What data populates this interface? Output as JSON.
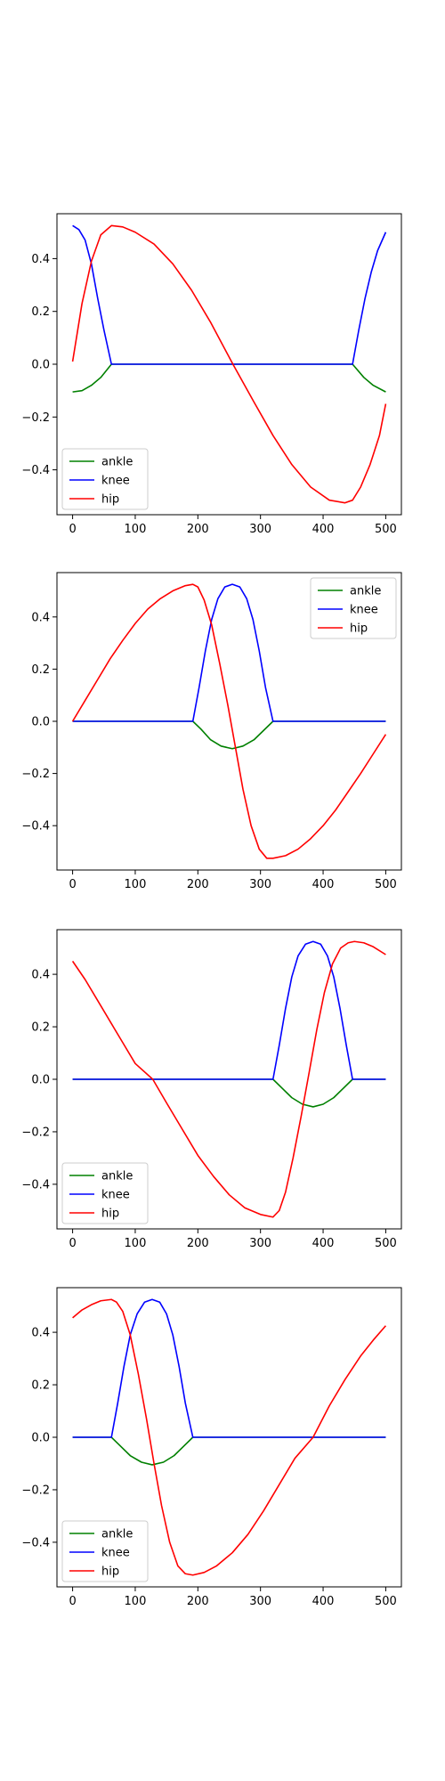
{
  "chart_data": [
    {
      "type": "line",
      "title": "",
      "xlabel": "",
      "ylabel": "",
      "xlim": [
        -25,
        525
      ],
      "ylim": [
        -0.57,
        0.57
      ],
      "xticks": [
        0,
        100,
        200,
        300,
        400,
        500
      ],
      "yticks": [
        -0.4,
        -0.2,
        0.0,
        0.2,
        0.4
      ],
      "grid": false,
      "legend_position": "lower-left",
      "series": [
        {
          "name": "ankle",
          "color": "#008000",
          "points": [
            [
              0,
              -0.105
            ],
            [
              15,
              -0.1
            ],
            [
              30,
              -0.08
            ],
            [
              45,
              -0.05
            ],
            [
              62,
              0
            ],
            [
              447,
              0
            ],
            [
              465,
              -0.05
            ],
            [
              480,
              -0.08
            ],
            [
              500,
              -0.105
            ]
          ]
        },
        {
          "name": "knee",
          "color": "#0000ff",
          "points": [
            [
              0,
              0.525
            ],
            [
              10,
              0.51
            ],
            [
              20,
              0.47
            ],
            [
              30,
              0.38
            ],
            [
              40,
              0.25
            ],
            [
              50,
              0.13
            ],
            [
              62,
              0
            ],
            [
              447,
              0
            ],
            [
              457,
              0.13
            ],
            [
              467,
              0.25
            ],
            [
              477,
              0.35
            ],
            [
              487,
              0.43
            ],
            [
              500,
              0.5
            ]
          ]
        },
        {
          "name": "hip",
          "color": "#ff0000",
          "points": [
            [
              0,
              0.01
            ],
            [
              15,
              0.23
            ],
            [
              30,
              0.39
            ],
            [
              45,
              0.49
            ],
            [
              62,
              0.525
            ],
            [
              80,
              0.52
            ],
            [
              100,
              0.5
            ],
            [
              130,
              0.455
            ],
            [
              160,
              0.38
            ],
            [
              190,
              0.28
            ],
            [
              220,
              0.16
            ],
            [
              256,
              0.0
            ],
            [
              290,
              -0.145
            ],
            [
              320,
              -0.27
            ],
            [
              350,
              -0.38
            ],
            [
              380,
              -0.465
            ],
            [
              410,
              -0.515
            ],
            [
              435,
              -0.525
            ],
            [
              447,
              -0.515
            ],
            [
              460,
              -0.465
            ],
            [
              475,
              -0.38
            ],
            [
              490,
              -0.27
            ],
            [
              500,
              -0.15
            ]
          ]
        }
      ]
    },
    {
      "type": "line",
      "title": "",
      "xlabel": "",
      "ylabel": "",
      "xlim": [
        -25,
        525
      ],
      "ylim": [
        -0.57,
        0.57
      ],
      "xticks": [
        0,
        100,
        200,
        300,
        400,
        500
      ],
      "yticks": [
        -0.4,
        -0.2,
        0.0,
        0.2,
        0.4
      ],
      "grid": false,
      "legend_position": "upper-right",
      "series": [
        {
          "name": "ankle",
          "color": "#008000",
          "points": [
            [
              0,
              0
            ],
            [
              192,
              0
            ],
            [
              205,
              -0.03
            ],
            [
              220,
              -0.07
            ],
            [
              237,
              -0.095
            ],
            [
              255,
              -0.105
            ],
            [
              272,
              -0.095
            ],
            [
              290,
              -0.07
            ],
            [
              305,
              -0.035
            ],
            [
              320,
              0
            ],
            [
              500,
              0
            ]
          ]
        },
        {
          "name": "knee",
          "color": "#0000ff",
          "points": [
            [
              0,
              0
            ],
            [
              192,
              0
            ],
            [
              202,
              0.13
            ],
            [
              212,
              0.27
            ],
            [
              222,
              0.39
            ],
            [
              232,
              0.47
            ],
            [
              243,
              0.515
            ],
            [
              255,
              0.525
            ],
            [
              267,
              0.515
            ],
            [
              278,
              0.47
            ],
            [
              288,
              0.39
            ],
            [
              298,
              0.27
            ],
            [
              308,
              0.13
            ],
            [
              320,
              0
            ],
            [
              500,
              0
            ]
          ]
        },
        {
          "name": "hip",
          "color": "#ff0000",
          "points": [
            [
              0,
              0.0
            ],
            [
              20,
              0.08
            ],
            [
              40,
              0.16
            ],
            [
              60,
              0.24
            ],
            [
              80,
              0.31
            ],
            [
              100,
              0.375
            ],
            [
              120,
              0.43
            ],
            [
              140,
              0.47
            ],
            [
              160,
              0.5
            ],
            [
              180,
              0.52
            ],
            [
              192,
              0.525
            ],
            [
              200,
              0.515
            ],
            [
              210,
              0.465
            ],
            [
              222,
              0.37
            ],
            [
              235,
              0.22
            ],
            [
              248,
              0.06
            ],
            [
              260,
              -0.1
            ],
            [
              272,
              -0.26
            ],
            [
              285,
              -0.4
            ],
            [
              298,
              -0.49
            ],
            [
              310,
              -0.525
            ],
            [
              320,
              -0.525
            ],
            [
              340,
              -0.515
            ],
            [
              360,
              -0.49
            ],
            [
              380,
              -0.45
            ],
            [
              400,
              -0.4
            ],
            [
              420,
              -0.34
            ],
            [
              440,
              -0.27
            ],
            [
              460,
              -0.2
            ],
            [
              480,
              -0.125
            ],
            [
              500,
              -0.05
            ]
          ]
        }
      ]
    },
    {
      "type": "line",
      "title": "",
      "xlabel": "",
      "ylabel": "",
      "xlim": [
        -25,
        525
      ],
      "ylim": [
        -0.57,
        0.57
      ],
      "xticks": [
        0,
        100,
        200,
        300,
        400,
        500
      ],
      "yticks": [
        -0.4,
        -0.2,
        0.0,
        0.2,
        0.4
      ],
      "grid": false,
      "legend_position": "lower-left",
      "series": [
        {
          "name": "ankle",
          "color": "#008000",
          "points": [
            [
              0,
              0
            ],
            [
              320,
              0
            ],
            [
              335,
              -0.035
            ],
            [
              350,
              -0.07
            ],
            [
              367,
              -0.095
            ],
            [
              384,
              -0.105
            ],
            [
              400,
              -0.095
            ],
            [
              417,
              -0.07
            ],
            [
              432,
              -0.035
            ],
            [
              447,
              0
            ],
            [
              500,
              0
            ]
          ]
        },
        {
          "name": "knee",
          "color": "#0000ff",
          "points": [
            [
              0,
              0
            ],
            [
              320,
              0
            ],
            [
              330,
              0.13
            ],
            [
              340,
              0.27
            ],
            [
              350,
              0.39
            ],
            [
              360,
              0.47
            ],
            [
              372,
              0.515
            ],
            [
              384,
              0.525
            ],
            [
              396,
              0.515
            ],
            [
              407,
              0.47
            ],
            [
              417,
              0.39
            ],
            [
              427,
              0.27
            ],
            [
              437,
              0.13
            ],
            [
              447,
              0
            ],
            [
              500,
              0
            ]
          ]
        },
        {
          "name": "hip",
          "color": "#ff0000",
          "points": [
            [
              0,
              0.45
            ],
            [
              20,
              0.38
            ],
            [
              40,
              0.3
            ],
            [
              60,
              0.22
            ],
            [
              80,
              0.14
            ],
            [
              100,
              0.06
            ],
            [
              128,
              0.0
            ],
            [
              150,
              -0.09
            ],
            [
              175,
              -0.19
            ],
            [
              200,
              -0.29
            ],
            [
              225,
              -0.37
            ],
            [
              250,
              -0.44
            ],
            [
              275,
              -0.49
            ],
            [
              300,
              -0.515
            ],
            [
              320,
              -0.525
            ],
            [
              330,
              -0.5
            ],
            [
              340,
              -0.43
            ],
            [
              352,
              -0.3
            ],
            [
              365,
              -0.14
            ],
            [
              378,
              0.03
            ],
            [
              390,
              0.19
            ],
            [
              402,
              0.33
            ],
            [
              415,
              0.44
            ],
            [
              428,
              0.5
            ],
            [
              440,
              0.52
            ],
            [
              450,
              0.525
            ],
            [
              465,
              0.52
            ],
            [
              480,
              0.505
            ],
            [
              500,
              0.475
            ]
          ]
        }
      ]
    },
    {
      "type": "line",
      "title": "",
      "xlabel": "",
      "ylabel": "",
      "xlim": [
        -25,
        525
      ],
      "ylim": [
        -0.57,
        0.57
      ],
      "xticks": [
        0,
        100,
        200,
        300,
        400,
        500
      ],
      "yticks": [
        -0.4,
        -0.2,
        0.0,
        0.2,
        0.4
      ],
      "grid": false,
      "legend_position": "lower-left",
      "series": [
        {
          "name": "ankle",
          "color": "#008000",
          "points": [
            [
              0,
              0
            ],
            [
              62,
              0
            ],
            [
              77,
              -0.035
            ],
            [
              92,
              -0.07
            ],
            [
              110,
              -0.095
            ],
            [
              127,
              -0.105
            ],
            [
              145,
              -0.095
            ],
            [
              162,
              -0.07
            ],
            [
              177,
              -0.035
            ],
            [
              192,
              0
            ],
            [
              500,
              0
            ]
          ]
        },
        {
          "name": "knee",
          "color": "#0000ff",
          "points": [
            [
              0,
              0
            ],
            [
              62,
              0
            ],
            [
              72,
              0.13
            ],
            [
              82,
              0.27
            ],
            [
              92,
              0.39
            ],
            [
              103,
              0.47
            ],
            [
              115,
              0.515
            ],
            [
              127,
              0.525
            ],
            [
              139,
              0.515
            ],
            [
              150,
              0.47
            ],
            [
              160,
              0.39
            ],
            [
              170,
              0.27
            ],
            [
              180,
              0.13
            ],
            [
              192,
              0
            ],
            [
              500,
              0
            ]
          ]
        },
        {
          "name": "hip",
          "color": "#ff0000",
          "points": [
            [
              0,
              0.455
            ],
            [
              15,
              0.485
            ],
            [
              30,
              0.505
            ],
            [
              45,
              0.52
            ],
            [
              62,
              0.525
            ],
            [
              70,
              0.515
            ],
            [
              80,
              0.48
            ],
            [
              92,
              0.39
            ],
            [
              105,
              0.24
            ],
            [
              118,
              0.07
            ],
            [
              130,
              -0.1
            ],
            [
              142,
              -0.26
            ],
            [
              155,
              -0.4
            ],
            [
              168,
              -0.49
            ],
            [
              180,
              -0.52
            ],
            [
              192,
              -0.525
            ],
            [
              210,
              -0.515
            ],
            [
              230,
              -0.49
            ],
            [
              255,
              -0.44
            ],
            [
              280,
              -0.37
            ],
            [
              305,
              -0.28
            ],
            [
              330,
              -0.18
            ],
            [
              355,
              -0.08
            ],
            [
              384,
              0.0
            ],
            [
              410,
              0.12
            ],
            [
              435,
              0.22
            ],
            [
              460,
              0.31
            ],
            [
              480,
              0.37
            ],
            [
              500,
              0.425
            ]
          ]
        }
      ]
    }
  ]
}
